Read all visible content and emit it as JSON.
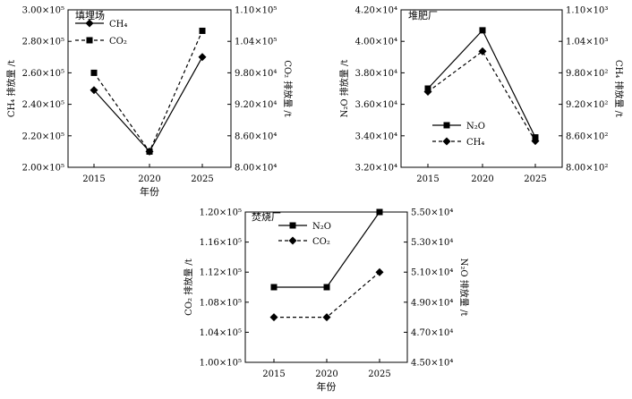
{
  "chart_data": [
    {
      "type": "line",
      "title": "填埋场",
      "categories": [
        "2015",
        "2020",
        "2025"
      ],
      "xlabel": "年份",
      "ylabel_left": "CH₄ 排放量 /t",
      "ylabel_right": "CO₂ 排放量 /t",
      "left_ticks": [
        "2.00×10⁵",
        "2.20×10⁵",
        "2.40×10⁵",
        "2.60×10⁵",
        "2.80×10⁵",
        "3.00×10⁵"
      ],
      "right_ticks": [
        "8.00×10⁴",
        "8.60×10⁴",
        "9.20×10⁴",
        "9.80×10⁴",
        "1.04×10⁵",
        "1.10×10⁵"
      ],
      "ylim_left": [
        200000,
        300000
      ],
      "ylim_right": [
        80000,
        110000
      ],
      "legend_position": "top-left",
      "series": [
        {
          "name": "CH₄",
          "axis": "left",
          "marker": "diamond",
          "dash": false,
          "values": [
            249000,
            210000,
            270000
          ]
        },
        {
          "name": "CO₂",
          "axis": "right",
          "marker": "square",
          "dash": true,
          "values": [
            98000,
            83000,
            106000
          ]
        }
      ]
    },
    {
      "type": "line",
      "title": "堆肥厂",
      "categories": [
        "2015",
        "2020",
        "2025"
      ],
      "xlabel": "",
      "ylabel_left": "N₂O 排放量 /t",
      "ylabel_right": "CH₄ 排放量 /t",
      "left_ticks": [
        "3.20×10⁴",
        "3.40×10⁴",
        "3.60×10⁴",
        "3.80×10⁴",
        "4.00×10⁴",
        "4.20×10⁴"
      ],
      "right_ticks": [
        "8.00×10²",
        "8.60×10²",
        "9.20×10²",
        "9.80×10²",
        "1.04×10³",
        "1.10×10³"
      ],
      "ylim_left": [
        32000,
        42000
      ],
      "ylim_right": [
        800,
        1100
      ],
      "legend_position": "bottom-left",
      "series": [
        {
          "name": "N₂O",
          "axis": "left",
          "marker": "square",
          "dash": false,
          "values": [
            37000,
            40700,
            33900
          ]
        },
        {
          "name": "CH₄",
          "axis": "right",
          "marker": "diamond",
          "dash": true,
          "values": [
            944,
            1021,
            850
          ]
        }
      ]
    },
    {
      "type": "line",
      "title": "焚烧厂",
      "categories": [
        "2015",
        "2020",
        "2025"
      ],
      "xlabel": "年份",
      "ylabel_left": "CO₂ 排放量 /t",
      "ylabel_right": "N₂O 排放量 /t",
      "left_ticks": [
        "1.00×10⁵",
        "1.04×10⁵",
        "1.08×10⁵",
        "1.12×10⁵",
        "1.16×10⁵",
        "1.20×10⁵"
      ],
      "right_ticks": [
        "4.50×10⁴",
        "4.70×10⁴",
        "4.90×10⁴",
        "5.10×10⁴",
        "5.30×10⁴",
        "5.50×10⁴"
      ],
      "ylim_left": [
        100000,
        120000
      ],
      "ylim_right": [
        45000,
        55000
      ],
      "legend_position": "top-left",
      "series": [
        {
          "name": "N₂O",
          "axis": "right",
          "marker": "square",
          "dash": false,
          "values": [
            50000,
            50000,
            55000
          ]
        },
        {
          "name": "CO₂",
          "axis": "left",
          "marker": "diamond",
          "dash": true,
          "values": [
            106000,
            106000,
            112000
          ]
        }
      ]
    }
  ]
}
